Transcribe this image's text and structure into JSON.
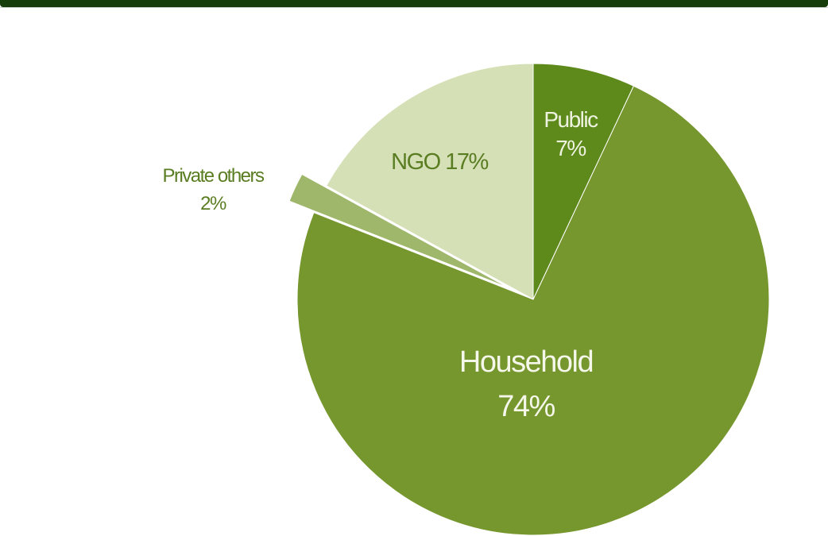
{
  "chart_data": {
    "type": "pie",
    "title": "",
    "start": "12 o'clock, clockwise",
    "slices": [
      {
        "label": "Public",
        "value": 7,
        "color": "#5e8a1c",
        "text_color": "#eef3e0",
        "lines": [
          "Public",
          "7%"
        ]
      },
      {
        "label": "Household",
        "value": 74,
        "color": "#76962e",
        "text_color": "#f4f7ea",
        "lines": [
          "Household",
          "74%"
        ]
      },
      {
        "label": "Private others",
        "value": 2,
        "color": "#9fb76a",
        "text_color": "#5a7d22",
        "exploded": true,
        "lines": [
          "Private others",
          "2%"
        ]
      },
      {
        "label": "NGO",
        "value": 17,
        "color": "#d5e0b6",
        "text_color": "#5a7d22",
        "lines": [
          "NGO 17%"
        ]
      }
    ]
  }
}
